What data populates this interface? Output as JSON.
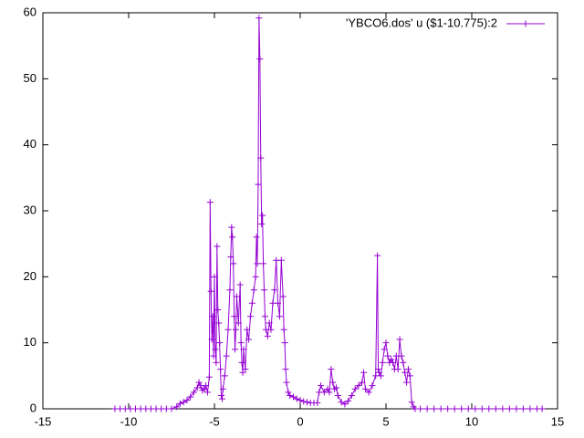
{
  "chart_data": {
    "type": "line",
    "x": [
      -10.8,
      -10.5,
      -10.2,
      -9.9,
      -9.6,
      -9.3,
      -9.0,
      -8.7,
      -8.4,
      -8.1,
      -7.8,
      -7.5,
      -7.2,
      -7.0,
      -6.8,
      -6.6,
      -6.4,
      -6.2,
      -6.0,
      -5.9,
      -5.8,
      -5.7,
      -5.6,
      -5.5,
      -5.4,
      -5.3,
      -5.25,
      -5.2,
      -5.15,
      -5.1,
      -5.05,
      -5.0,
      -4.95,
      -4.9,
      -4.85,
      -4.8,
      -4.75,
      -4.7,
      -4.65,
      -4.6,
      -4.55,
      -4.5,
      -4.4,
      -4.3,
      -4.2,
      -4.1,
      -4.05,
      -4.0,
      -3.95,
      -3.9,
      -3.85,
      -3.8,
      -3.75,
      -3.7,
      -3.6,
      -3.5,
      -3.45,
      -3.4,
      -3.35,
      -3.3,
      -3.2,
      -3.1,
      -3.0,
      -2.9,
      -2.8,
      -2.7,
      -2.6,
      -2.55,
      -2.5,
      -2.45,
      -2.4,
      -2.35,
      -2.3,
      -2.25,
      -2.2,
      -2.15,
      -2.1,
      -2.05,
      -2.0,
      -1.9,
      -1.8,
      -1.7,
      -1.6,
      -1.5,
      -1.4,
      -1.3,
      -1.2,
      -1.1,
      -1.0,
      -0.95,
      -0.9,
      -0.85,
      -0.8,
      -0.7,
      -0.6,
      -0.4,
      -0.2,
      0,
      0.2,
      0.4,
      0.6,
      0.8,
      1.0,
      1.1,
      1.2,
      1.4,
      1.6,
      1.7,
      1.8,
      1.9,
      2.0,
      2.1,
      2.2,
      2.4,
      2.6,
      2.8,
      3.0,
      3.2,
      3.4,
      3.6,
      3.7,
      3.8,
      4.0,
      4.2,
      4.4,
      4.5,
      4.55,
      4.6,
      4.7,
      4.8,
      4.9,
      5.0,
      5.1,
      5.2,
      5.3,
      5.4,
      5.5,
      5.6,
      5.7,
      5.8,
      5.9,
      6.0,
      6.1,
      6.2,
      6.3,
      6.4,
      6.5,
      6.6,
      6.7,
      7.0,
      7.4,
      7.8,
      8.2,
      8.6,
      9.0,
      9.4,
      9.8,
      10.2,
      10.6,
      11.0,
      11.4,
      11.8,
      12.2,
      12.6,
      13.0,
      13.4,
      13.8,
      14.1
    ],
    "series": [
      {
        "name": "'YBCO6.dos' u ($1-10.775):2",
        "color": "#9400d3",
        "values": [
          0,
          0,
          0,
          0,
          0,
          0,
          0,
          0,
          0,
          0,
          0,
          0,
          0.3,
          0.8,
          1.0,
          1.3,
          1.8,
          2.5,
          3.2,
          4.0,
          3.5,
          2.8,
          3.0,
          3.5,
          2.5,
          4.8,
          31.3,
          17.8,
          10.5,
          14,
          8,
          20,
          9,
          7,
          24.6,
          15,
          13,
          10,
          6,
          2,
          1.5,
          3,
          5,
          8,
          12,
          18,
          23,
          27.5,
          26,
          22,
          14,
          9,
          12,
          17,
          13,
          18.8,
          10,
          7,
          5.5,
          9,
          6,
          12,
          10.5,
          14,
          16,
          18,
          20,
          26,
          22,
          34,
          59.2,
          53,
          38,
          28,
          29.3,
          22,
          18,
          14,
          12,
          11,
          13,
          12,
          16,
          18,
          22.5,
          16,
          14,
          22.5,
          17,
          12,
          10,
          6,
          4,
          2.5,
          2.0,
          1.8,
          1.5,
          1.3,
          1.1,
          1.0,
          0.9,
          0.9,
          0.9,
          2.5,
          3.5,
          2.5,
          3,
          2.5,
          6,
          4,
          3,
          3.2,
          2,
          1,
          0.7,
          1.2,
          2,
          3,
          3.5,
          4,
          5.5,
          3,
          2.5,
          3.5,
          5,
          23.2,
          6,
          5.5,
          5,
          7,
          9,
          10,
          8,
          7,
          7.5,
          7,
          6,
          8,
          6,
          10.5,
          8,
          7,
          5.5,
          4,
          6,
          5,
          1,
          0.3,
          0,
          0,
          0,
          0,
          0,
          0,
          0,
          0,
          0,
          0,
          0,
          0,
          0,
          0,
          0,
          0,
          0,
          0,
          0,
          0
        ]
      }
    ],
    "xlim": [
      -15,
      15
    ],
    "ylim": [
      0,
      60
    ],
    "xticks": [
      -15,
      -10,
      -5,
      0,
      5,
      10,
      15
    ],
    "yticks": [
      0,
      10,
      20,
      30,
      40,
      50,
      60
    ],
    "marker": "plus",
    "legend": "top-right"
  }
}
